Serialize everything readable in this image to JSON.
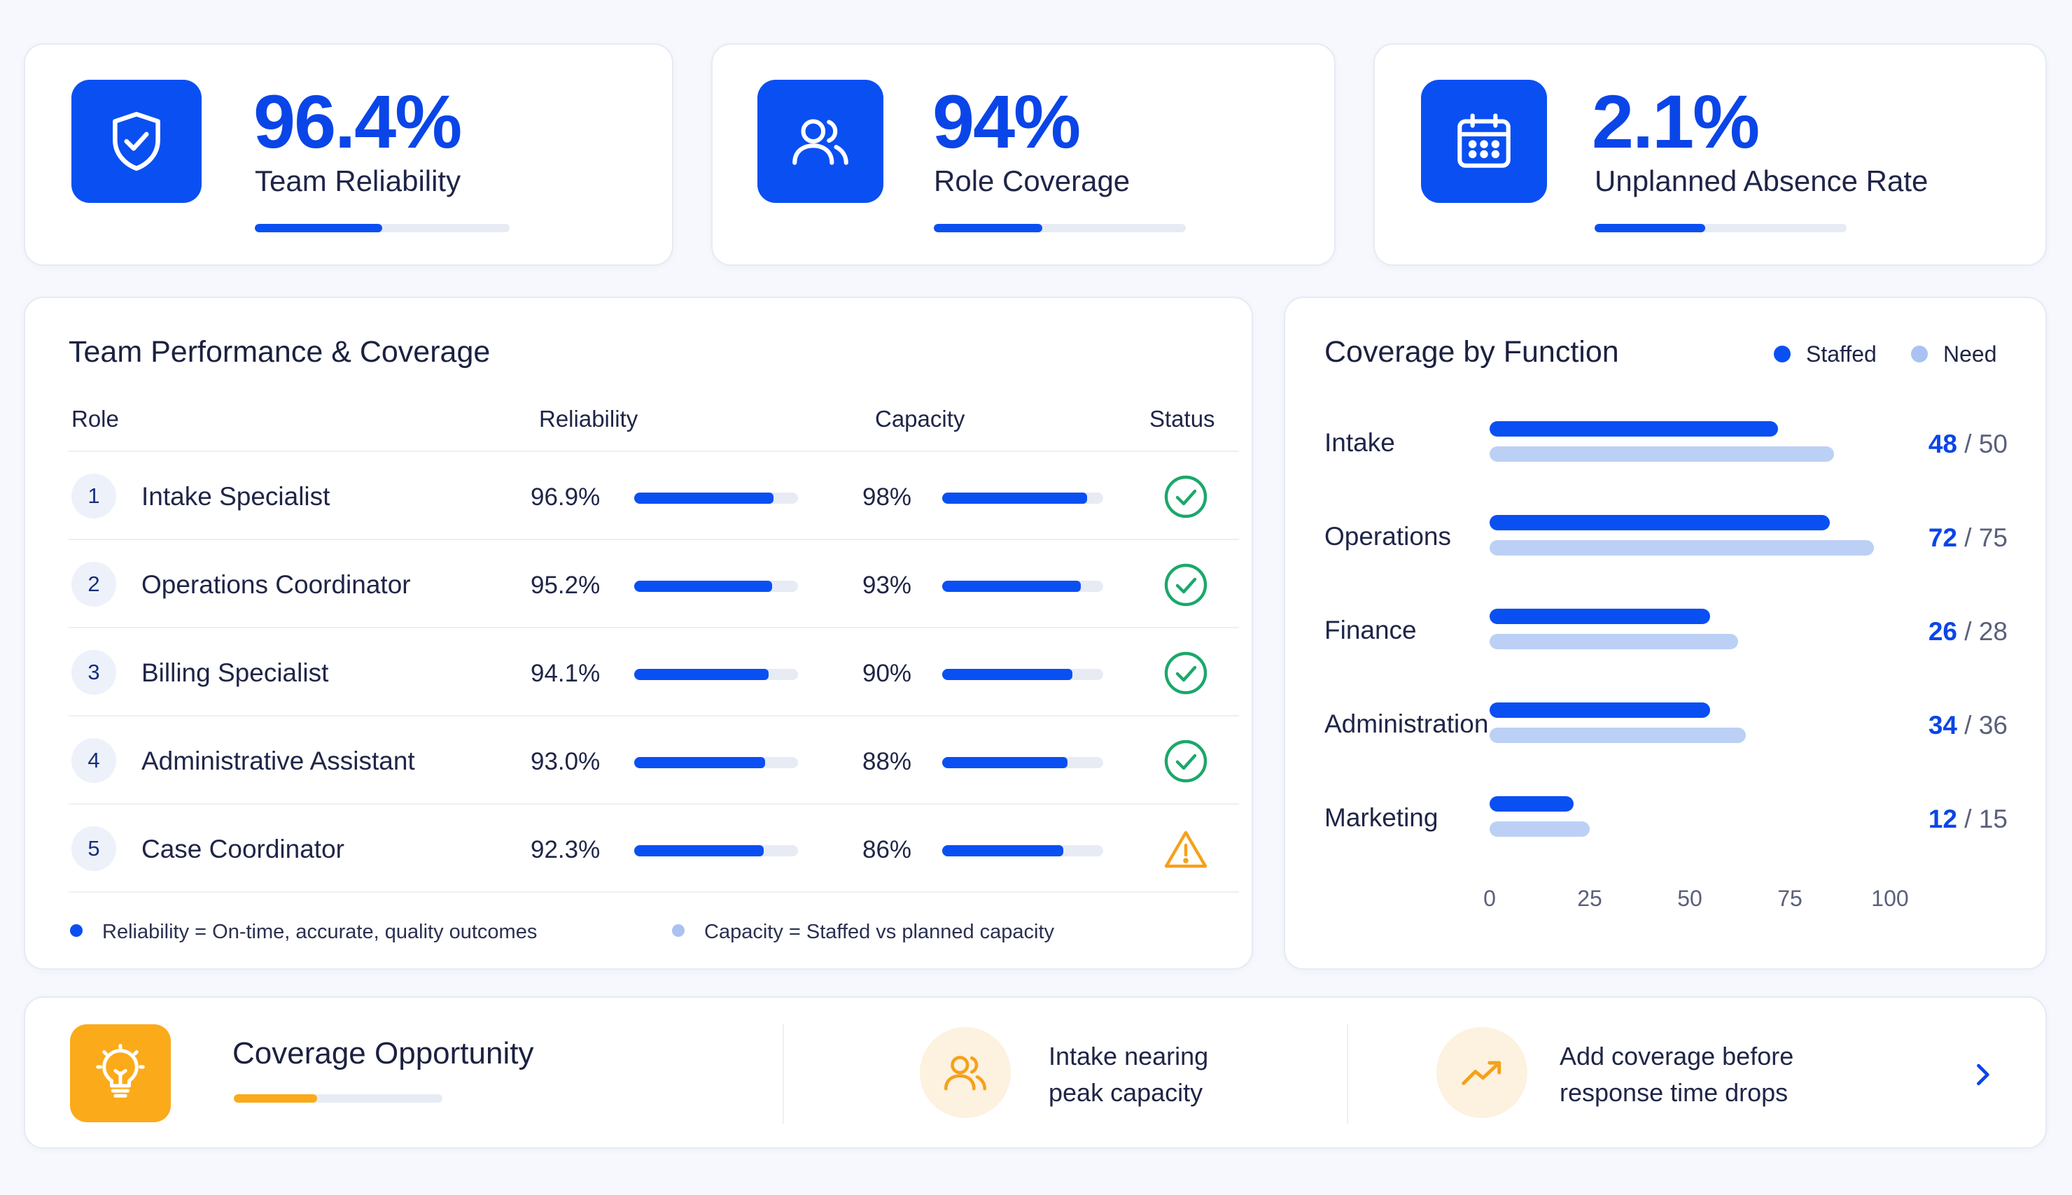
{
  "kpis": [
    {
      "value": "96.4%",
      "label": "Team Reliability",
      "progress": 0.5,
      "icon": "shield-check-icon"
    },
    {
      "value": "94%",
      "label": "Role Coverage",
      "progress": 0.43,
      "icon": "people-icon"
    },
    {
      "value": "2.1%",
      "label": "Unplanned Absence Rate",
      "progress": 0.44,
      "icon": "calendar-icon"
    }
  ],
  "team": {
    "title": "Team Performance & Coverage",
    "columns": {
      "role": "Role",
      "reliability": "Reliability",
      "capacity": "Capacity",
      "status": "Status"
    },
    "rows": [
      {
        "num": "1",
        "role": "Intake Specialist",
        "reliability": "96.9%",
        "reliability_fill": 0.85,
        "capacity": "98%",
        "capacity_fill": 0.9,
        "status": "ok"
      },
      {
        "num": "2",
        "role": "Operations Coordinator",
        "reliability": "95.2%",
        "reliability_fill": 0.84,
        "capacity": "93%",
        "capacity_fill": 0.86,
        "status": "ok"
      },
      {
        "num": "3",
        "role": "Billing Specialist",
        "reliability": "94.1%",
        "reliability_fill": 0.82,
        "capacity": "90%",
        "capacity_fill": 0.81,
        "status": "ok"
      },
      {
        "num": "4",
        "role": "Administrative Assistant",
        "reliability": "93.0%",
        "reliability_fill": 0.8,
        "capacity": "88%",
        "capacity_fill": 0.78,
        "status": "ok"
      },
      {
        "num": "5",
        "role": "Case Coordinator",
        "reliability": "92.3%",
        "reliability_fill": 0.79,
        "capacity": "86%",
        "capacity_fill": 0.75,
        "status": "warning"
      }
    ],
    "legend": {
      "reliability": "Reliability = On-time, accurate, quality outcomes",
      "capacity": "Capacity = Staffed vs planned capacity"
    }
  },
  "coverage": {
    "title": "Coverage by Function",
    "legend_staffed": "Staffed",
    "legend_need": "Need",
    "colors": {
      "staffed": "#0a4ff2",
      "need": "#bcd0f5"
    }
  },
  "chart_data": {
    "type": "bar",
    "title": "Coverage by Function",
    "categories": [
      "Intake",
      "Operations",
      "Finance",
      "Administration",
      "Marketing"
    ],
    "series": [
      {
        "name": "Staffed",
        "values": [
          48,
          72,
          26,
          34,
          12
        ]
      },
      {
        "name": "Need",
        "values": [
          50,
          75,
          28,
          36,
          15
        ]
      }
    ],
    "bar_extent": {
      "staffed": [
        72,
        85,
        55,
        55,
        21
      ],
      "need": [
        86,
        96,
        62,
        64,
        25
      ]
    },
    "counts": [
      {
        "staffed": "48",
        "need": "/ 50"
      },
      {
        "staffed": "72",
        "need": "/ 75"
      },
      {
        "staffed": "26",
        "need": "/ 28"
      },
      {
        "staffed": "34",
        "need": "/ 36"
      },
      {
        "staffed": "12",
        "need": "/ 15"
      }
    ],
    "xticks": [
      "0",
      "25",
      "50",
      "75",
      "100"
    ],
    "xlim": [
      0,
      100
    ],
    "legend_position": "top-right",
    "orientation": "horizontal"
  },
  "opportunity": {
    "title": "Coverage Opportunity",
    "progress": 0.4,
    "item1": {
      "line1": "Intake nearing",
      "line2": "peak capacity"
    },
    "item2": {
      "line1": "Add coverage before",
      "line2": "response time drops"
    }
  }
}
